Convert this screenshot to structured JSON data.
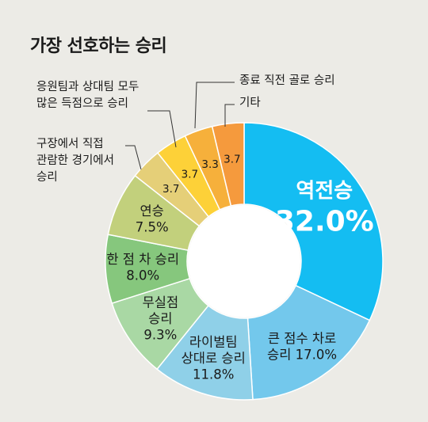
{
  "title": "가장 선호하는 승리",
  "chart_data": {
    "type": "pie",
    "title": "가장 선호하는 승리",
    "categories": [
      "역전승",
      "큰 점수 차로 승리",
      "라이벌팀 상대로 승리",
      "무실점 승리",
      "한 점 차 승리",
      "연승",
      "구장에서 직접 관람한 경기에서 승리",
      "응원팀과 상대팀 모두 많은 득점으로 승리",
      "종료 직전 골로 승리",
      "기타"
    ],
    "values": [
      32.0,
      17.0,
      11.8,
      9.3,
      8.0,
      7.5,
      3.7,
      3.7,
      3.3,
      3.7
    ],
    "value_labels": [
      "32.0%",
      "17.0%",
      "11.8%",
      "9.3%",
      "8.0%",
      "7.5%",
      "3.7",
      "3.7",
      "3.3",
      "3.7"
    ],
    "inner_labels": [
      "역전승",
      "큰 점수 차로\n승리",
      "라이벌팀\n상대로 승리",
      "무실점\n승리",
      "한 점 차 승리",
      "연승",
      "",
      "",
      "",
      ""
    ],
    "callout_labels": [
      "구장에서 직접\n관람한 경기에서\n승리",
      "응원팀과 상대팀 모두\n많은 득점으로 승리",
      "종료 직전 골로 승리",
      "기타"
    ],
    "colors": [
      "#14bdf2",
      "#73c8ec",
      "#8fd0e8",
      "#a9d8a4",
      "#86c77d",
      "#c2d07c",
      "#e5cf78",
      "#fdd138",
      "#f6b03b",
      "#f59a3d"
    ]
  }
}
